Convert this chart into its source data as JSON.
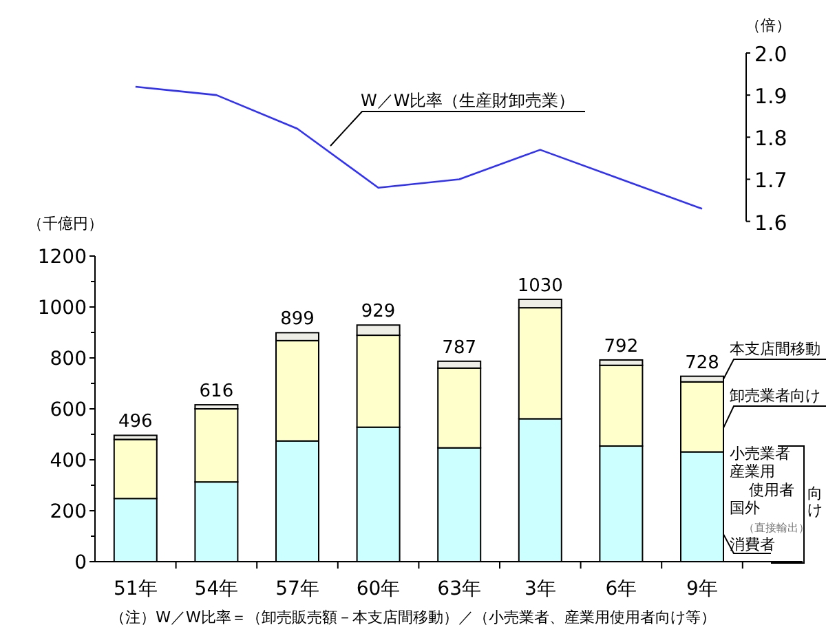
{
  "chart_data": [
    {
      "type": "line",
      "categories": [
        null,
        null,
        null,
        null,
        null,
        null,
        null,
        null
      ],
      "tick_labels": "y",
      "ylabel": "（倍）",
      "ylim": [
        1.6,
        2.0
      ],
      "yticks": [
        {
          "value": 1.6,
          "label": "1.6"
        },
        {
          "value": 1.7,
          "label": "1.7"
        },
        {
          "value": 1.8,
          "label": "1.8"
        },
        {
          "value": 1.9,
          "label": "1.9"
        },
        {
          "value": 2.0,
          "label": "2.0"
        }
      ],
      "series": [
        {
          "name": "W／W比率（生産財卸売業）",
          "color": "#3030ff",
          "values": [
            1.92,
            1.9,
            1.82,
            1.68,
            1.7,
            1.77,
            1.7,
            1.63
          ]
        }
      ]
    },
    {
      "type": "bar",
      "stacked": true,
      "categories": [
        "51年",
        "54年",
        "57年",
        "60年",
        "63年",
        "3年",
        "6年",
        "9年"
      ],
      "ylabel": "（千億円）",
      "ylim": [
        0,
        1200
      ],
      "yticks": [
        0,
        {
          "value": 100,
          "label": null
        },
        200,
        {
          "value": 300,
          "label": null
        },
        400,
        {
          "value": 500,
          "label": null
        },
        600,
        {
          "value": 700,
          "label": null
        },
        800,
        {
          "value": 900,
          "label": null
        },
        1000,
        {
          "value": 1100,
          "label": null
        },
        1200
      ],
      "series": [
        {
          "name": "小売業者産業用使用者国外（直接輸出）消費者",
          "color": "#ccffff",
          "values": [
            248,
            313,
            474,
            528,
            447,
            561,
            454,
            431
          ]
        },
        {
          "name": "卸売業者向け",
          "color": "#ffffcc",
          "values": [
            232,
            287,
            394,
            361,
            313,
            436,
            317,
            275
          ]
        },
        {
          "name": "本支店間移動",
          "color": "#eeeee6",
          "values": [
            16,
            16,
            31,
            40,
            27,
            33,
            21,
            22
          ]
        }
      ],
      "totals": [
        "496",
        "616",
        "899",
        "929",
        "787",
        "1030",
        "792",
        "728"
      ],
      "annotations": [
        "向け",
        "（注）W／W比率＝（卸売販売額－本支店間移動）／（小売業者、産業用使用者向け等）"
      ]
    }
  ]
}
